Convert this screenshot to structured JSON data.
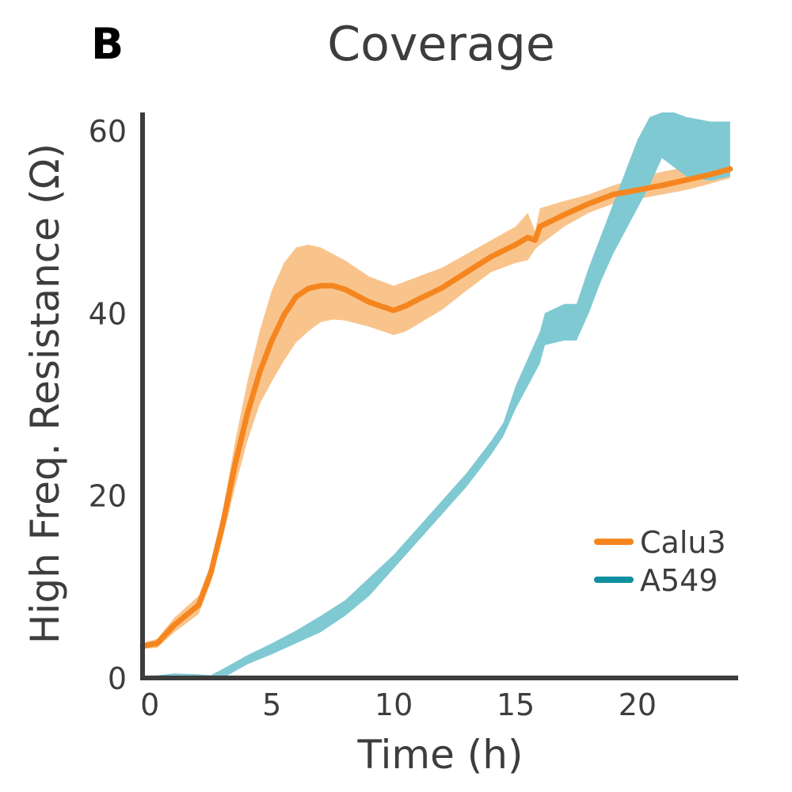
{
  "panel_label": "B",
  "colors": {
    "calu3_line": "#F5861F",
    "calu3_band": "#F9C48C",
    "a549_line": "#0F8FA0",
    "a549_band": "#7FC9D3",
    "axis": "#3d3d3d"
  },
  "chart_data": {
    "type": "line",
    "title": "Coverage",
    "xlabel": "Time (h)",
    "ylabel": "High Freq. Resistance (Ω)",
    "xlim": [
      -0.3,
      23.9
    ],
    "ylim": [
      0,
      62
    ],
    "xticks": [
      0,
      5,
      10,
      15,
      20
    ],
    "yticks": [
      0,
      20,
      40,
      60
    ],
    "legend_position": "right",
    "series": [
      {
        "name": "Calu3",
        "color": "#F5861F",
        "band_color": "#F9C48C",
        "x": [
          -0.3,
          0.3,
          1.0,
          2.0,
          2.5,
          3.0,
          3.5,
          4.0,
          4.5,
          5.0,
          5.5,
          6.0,
          6.5,
          7.0,
          7.5,
          8.0,
          9.0,
          10.0,
          10.5,
          11.0,
          12.0,
          13.0,
          14.0,
          15.0,
          15.5,
          15.8,
          16.0,
          17.0,
          18.0,
          19.0,
          20.0,
          21.0,
          22.0,
          23.0,
          23.8
        ],
        "mean": [
          3.5,
          3.8,
          5.8,
          8.0,
          11.5,
          17.0,
          23.5,
          29.0,
          33.5,
          37.0,
          39.8,
          41.8,
          42.7,
          43.0,
          43.0,
          42.6,
          41.2,
          40.3,
          40.8,
          41.5,
          42.8,
          44.5,
          46.2,
          47.5,
          48.3,
          48.0,
          49.5,
          50.8,
          52.0,
          53.0,
          53.5,
          54.0,
          54.6,
          55.2,
          55.8
        ],
        "upper": [
          3.8,
          4.3,
          6.6,
          9.0,
          12.5,
          18.5,
          26.0,
          32.5,
          38.0,
          42.5,
          45.5,
          47.2,
          47.5,
          47.2,
          46.5,
          45.8,
          44.0,
          43.0,
          43.5,
          44.0,
          45.0,
          46.5,
          48.0,
          49.5,
          51.0,
          49.0,
          51.5,
          52.3,
          53.0,
          54.0,
          54.8,
          55.5,
          56.0,
          56.5,
          57.0
        ],
        "lower": [
          3.2,
          3.3,
          5.0,
          7.0,
          10.5,
          15.5,
          21.0,
          26.0,
          30.0,
          32.5,
          34.8,
          36.8,
          38.0,
          39.0,
          39.3,
          39.2,
          38.5,
          37.6,
          38.0,
          38.8,
          40.4,
          42.5,
          44.5,
          45.5,
          45.8,
          47.0,
          47.5,
          49.5,
          51.0,
          52.0,
          52.5,
          53.0,
          53.5,
          54.2,
          54.8
        ]
      },
      {
        "name": "A549",
        "color": "#0F8FA0",
        "band_color": "#7FC9D3",
        "x": [
          -0.3,
          1.0,
          2.0,
          2.5,
          3.0,
          4.0,
          5.0,
          6.0,
          7.0,
          8.0,
          9.0,
          10.0,
          11.0,
          12.0,
          13.0,
          14.0,
          14.5,
          15.0,
          15.5,
          16.0,
          16.2,
          17.0,
          17.5,
          18.0,
          18.5,
          19.0,
          19.5,
          20.0,
          20.5,
          21.0,
          21.5,
          22.0,
          23.0,
          23.8
        ],
        "upper": [
          0.1,
          0.5,
          0.4,
          0.3,
          1.0,
          2.5,
          3.8,
          5.2,
          6.8,
          8.5,
          11.0,
          13.5,
          16.5,
          19.5,
          22.5,
          26.0,
          28.0,
          32.0,
          35.0,
          38.0,
          40.0,
          41.0,
          41.0,
          45.0,
          48.5,
          52.0,
          55.5,
          59.0,
          61.5,
          62.0,
          62.0,
          61.5,
          61.0,
          61.0
        ],
        "lower": [
          0.0,
          0.0,
          0.0,
          0.0,
          0.0,
          1.5,
          2.6,
          3.8,
          5.0,
          6.8,
          9.0,
          12.0,
          15.0,
          18.0,
          21.0,
          24.5,
          26.5,
          29.5,
          32.0,
          34.5,
          36.5,
          37.0,
          37.0,
          40.0,
          43.5,
          46.5,
          49.0,
          51.5,
          54.0,
          57.0,
          56.0,
          55.0,
          54.5,
          55.0
        ]
      }
    ]
  }
}
